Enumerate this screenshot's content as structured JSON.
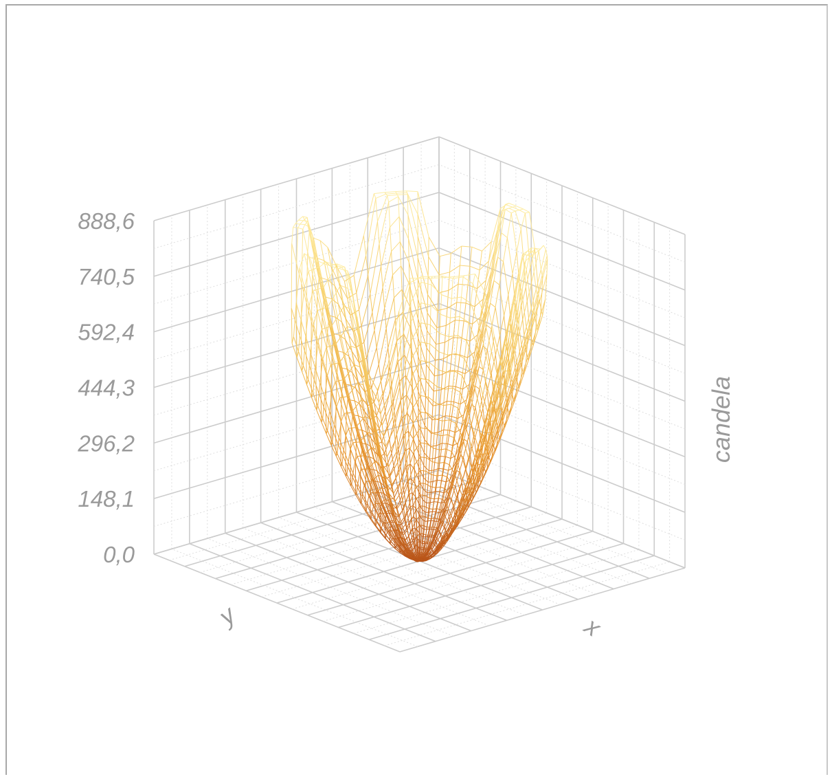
{
  "chart_data": {
    "type": "surface-3d-wireframe",
    "title": "",
    "xlabel": "x",
    "ylabel": "y",
    "zlabel": "candela",
    "zlim": [
      0,
      888.6
    ],
    "z_ticks": [
      "0,0",
      "148,1",
      "296,2",
      "444,3",
      "592,4",
      "740,5",
      "888,6"
    ],
    "z_tick_values": [
      0.0,
      148.1,
      296.2,
      444.3,
      592.4,
      740.5,
      888.6
    ],
    "z_min": 0.0,
    "z_max_approx": 888.6,
    "grid": true,
    "colormap": [
      "#b8541a",
      "#e8962e",
      "#f5c860",
      "#fff0a8"
    ],
    "description_series": [
      {
        "name": "",
        "shape": "bowl-shaped luminous intensity distribution with petal-like lobes rising toward the top"
      }
    ]
  },
  "colors": {
    "frame": "#a8a8a8",
    "grid": "#cccccc",
    "grid_minor": "#dedede",
    "label": "#9a9a9a"
  }
}
